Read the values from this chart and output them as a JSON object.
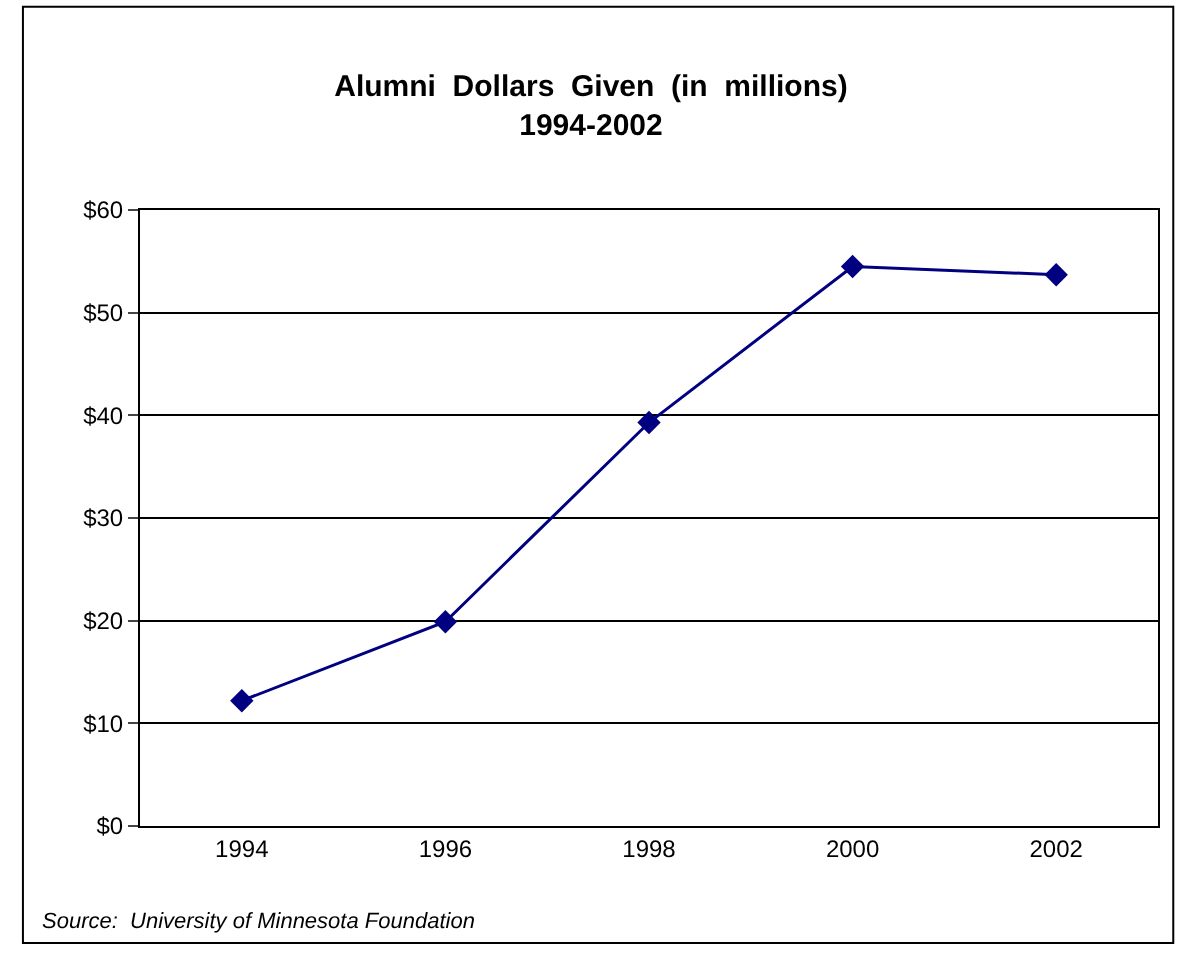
{
  "chart_data": {
    "type": "line",
    "title": "Alumni  Dollars  Given  (in  millions)\n1994-2002",
    "categories": [
      "1994",
      "1996",
      "1998",
      "2000",
      "2002"
    ],
    "series": [
      {
        "color": "#000080",
        "values": [
          12.2,
          19.9,
          39.3,
          54.5,
          53.7
        ]
      }
    ],
    "ylim": [
      0,
      60
    ],
    "yticks": [
      {
        "value": 0,
        "label": "$0"
      },
      {
        "value": 10,
        "label": "$10"
      },
      {
        "value": 20,
        "label": "$20"
      },
      {
        "value": 30,
        "label": "$30"
      },
      {
        "value": 40,
        "label": "$40"
      },
      {
        "value": 50,
        "label": "$50"
      },
      {
        "value": 60,
        "label": "$60"
      }
    ],
    "grid": "y",
    "marker": "diamond",
    "line_style": "solid",
    "annotations": [
      "Source:  University of Minnesota Foundation"
    ]
  }
}
